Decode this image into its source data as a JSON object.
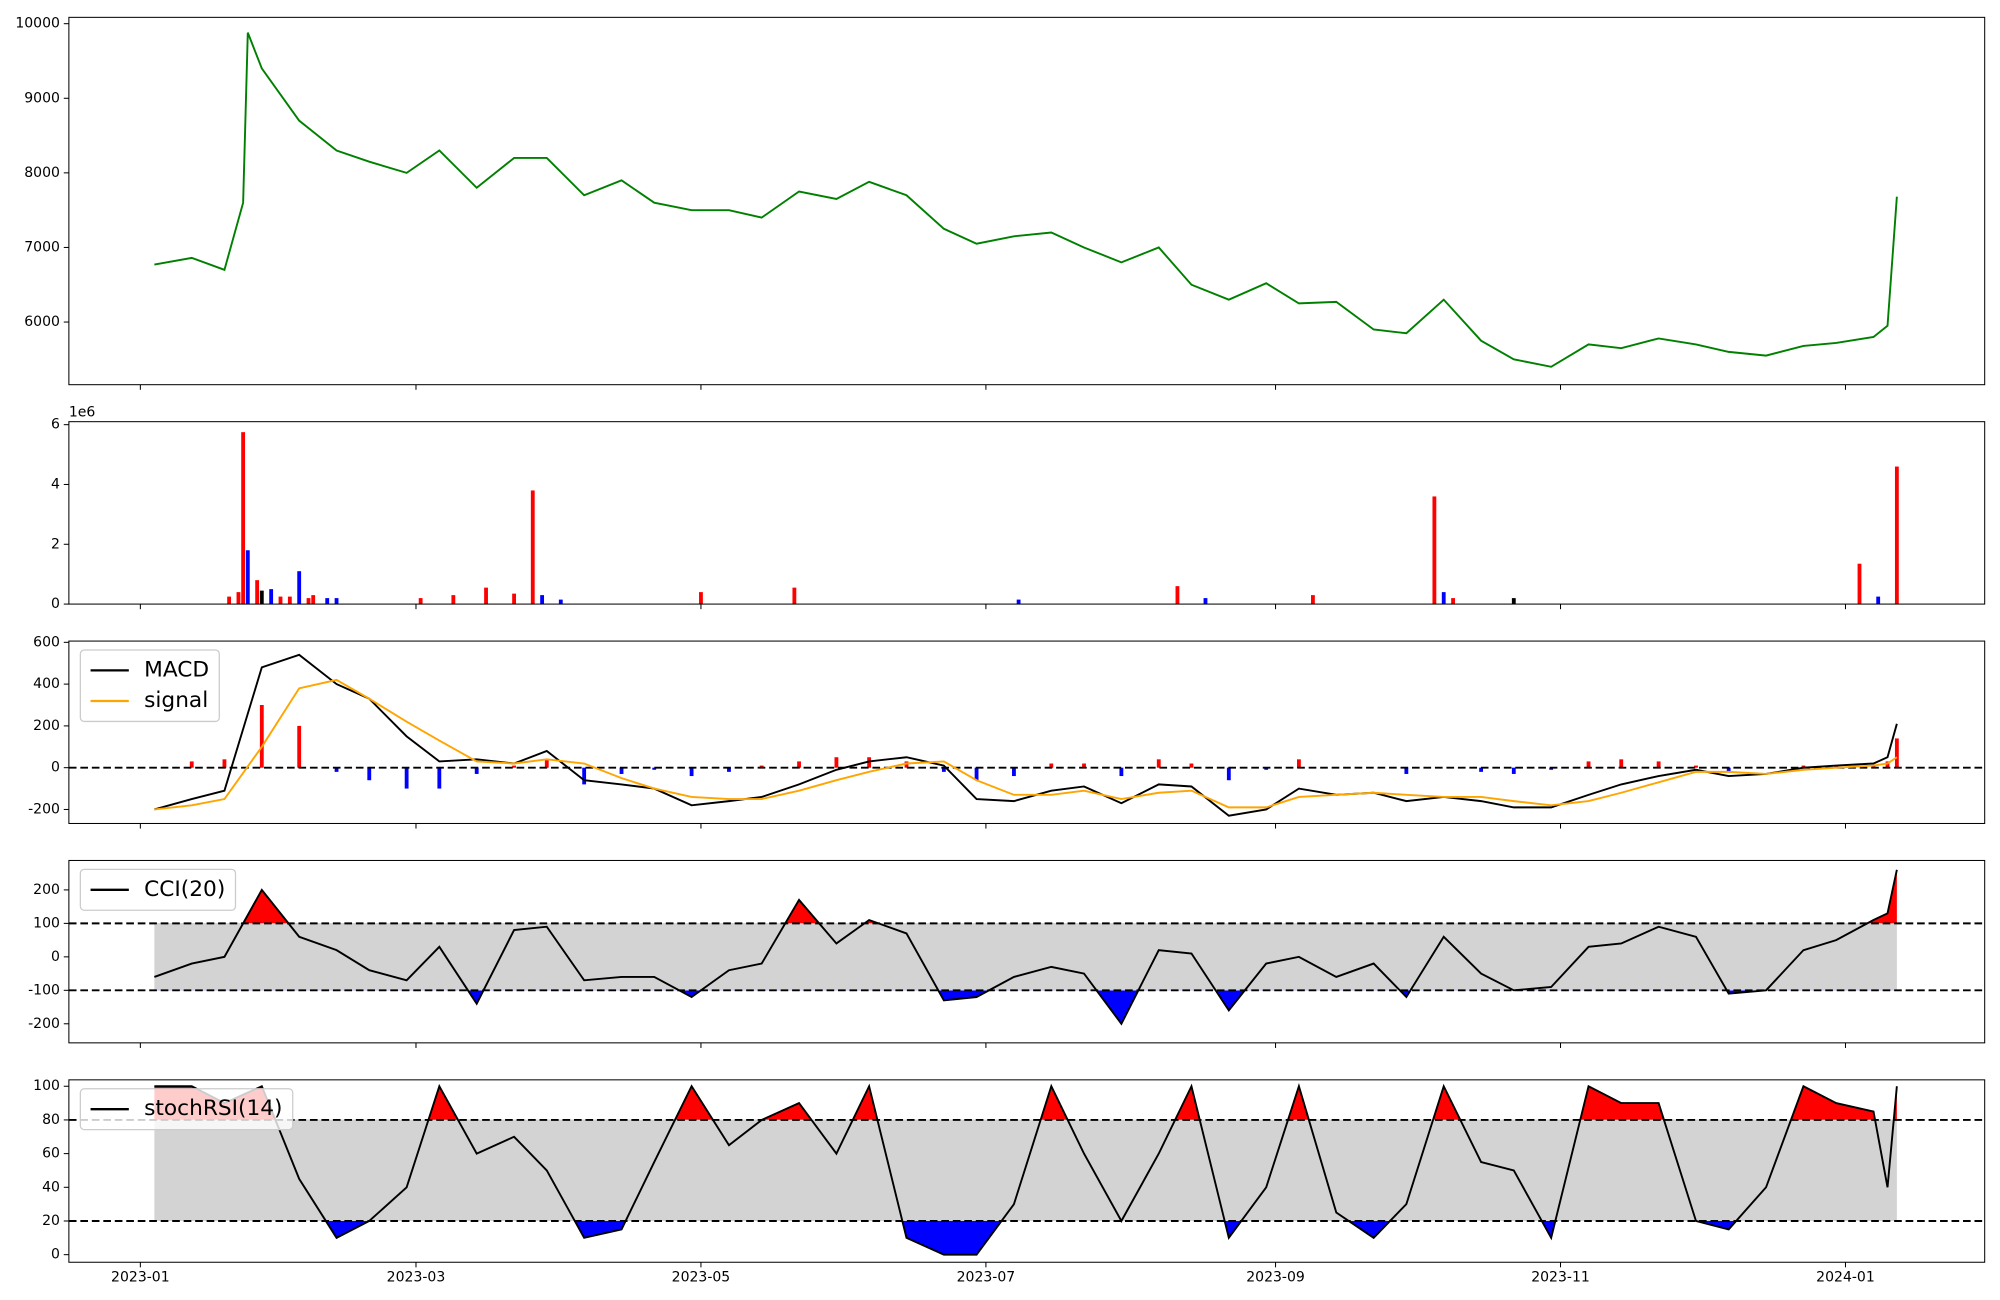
{
  "chart_data": [
    {
      "type": "line",
      "x": [
        3,
        11,
        18,
        22,
        23,
        26,
        34,
        42,
        49,
        57,
        64,
        72,
        80,
        87,
        95,
        103,
        110,
        118,
        126,
        133,
        141,
        149,
        156,
        164,
        172,
        179,
        187,
        195,
        202,
        210,
        218,
        225,
        233,
        241,
        248,
        256,
        264,
        271,
        279,
        287,
        294,
        302,
        310,
        317,
        325,
        333,
        340,
        348,
        356,
        363,
        371,
        374,
        376
      ],
      "series": [
        {
          "color": "green",
          "values": [
            6770,
            6860,
            6700,
            7600,
            9880,
            9400,
            8700,
            8300,
            8150,
            8000,
            8300,
            7800,
            8200,
            8200,
            7700,
            7900,
            7600,
            7500,
            7500,
            7400,
            7750,
            7650,
            7880,
            7700,
            7250,
            7050,
            7150,
            7200,
            7000,
            6800,
            7000,
            6500,
            6300,
            6520,
            6250,
            6270,
            5900,
            5850,
            6300,
            5750,
            5500,
            5400,
            5700,
            5650,
            5780,
            5700,
            5600,
            5550,
            5680,
            5720,
            5800,
            5950,
            7680
          ]
        }
      ],
      "xlim": [
        -15.3,
        394.8
      ],
      "ylim": [
        5160,
        10085
      ],
      "yticks": [
        6000,
        7000,
        8000,
        9000,
        10000
      ]
    },
    {
      "type": "bar",
      "x": [
        19,
        21,
        22,
        23,
        25,
        26,
        28,
        30,
        32,
        34,
        36,
        37,
        40,
        42,
        60,
        67,
        74,
        80,
        84,
        86,
        90,
        120,
        140,
        188,
        222,
        228,
        251,
        277,
        279,
        281,
        294,
        368,
        372,
        376
      ],
      "values": [
        0.25,
        0.4,
        5.75,
        1.8,
        0.8,
        0.45,
        0.5,
        0.25,
        0.25,
        1.1,
        0.2,
        0.3,
        0.2,
        0.2,
        0.2,
        0.3,
        0.55,
        0.35,
        3.8,
        0.3,
        0.15,
        0.4,
        0.55,
        0.15,
        0.6,
        0.2,
        0.3,
        3.6,
        0.4,
        0.2,
        0.2,
        1.35,
        0.25,
        4.6
      ],
      "colors": [
        "red",
        "red",
        "red",
        "blue",
        "red",
        "black",
        "blue",
        "red",
        "red",
        "blue",
        "red",
        "red",
        "blue",
        "blue",
        "red",
        "red",
        "red",
        "red",
        "red",
        "blue",
        "blue",
        "red",
        "red",
        "blue",
        "red",
        "blue",
        "red",
        "red",
        "blue",
        "red",
        "black",
        "red",
        "blue",
        "red"
      ],
      "xlim": [
        -15.3,
        394.8
      ],
      "ylim": [
        0,
        6.1
      ],
      "yticks": [
        0,
        2,
        4,
        6
      ],
      "y_offset_label": "1e6"
    },
    {
      "type": "line",
      "x": [
        3,
        11,
        18,
        26,
        34,
        42,
        49,
        57,
        64,
        72,
        80,
        87,
        95,
        103,
        110,
        118,
        126,
        133,
        141,
        149,
        156,
        164,
        172,
        179,
        187,
        195,
        202,
        210,
        218,
        225,
        233,
        241,
        248,
        256,
        264,
        271,
        279,
        287,
        294,
        302,
        310,
        317,
        325,
        333,
        340,
        348,
        356,
        363,
        371,
        374,
        376
      ],
      "series": [
        {
          "name": "MACD",
          "color": "black",
          "values": [
            -200,
            -150,
            -110,
            480,
            540,
            400,
            330,
            150,
            30,
            40,
            20,
            80,
            -60,
            -80,
            -100,
            -180,
            -160,
            -140,
            -80,
            -10,
            30,
            50,
            10,
            -150,
            -160,
            -110,
            -90,
            -170,
            -80,
            -90,
            -230,
            -200,
            -100,
            -130,
            -120,
            -160,
            -140,
            -160,
            -190,
            -190,
            -130,
            -80,
            -40,
            -10,
            -40,
            -30,
            0,
            10,
            20,
            50,
            210
          ]
        },
        {
          "name": "signal",
          "color": "orange",
          "values": [
            -200,
            -180,
            -150,
            100,
            380,
            420,
            330,
            220,
            130,
            30,
            20,
            40,
            20,
            -50,
            -100,
            -140,
            -150,
            -150,
            -110,
            -60,
            -20,
            20,
            30,
            -60,
            -130,
            -130,
            -110,
            -150,
            -120,
            -110,
            -190,
            -190,
            -140,
            -130,
            -120,
            -130,
            -140,
            -140,
            -160,
            -180,
            -160,
            -120,
            -70,
            -20,
            -20,
            -30,
            -10,
            0,
            10,
            20,
            50
          ]
        }
      ],
      "histogram": {
        "values": [
          0,
          30,
          40,
          300,
          200,
          -20,
          -60,
          -100,
          -100,
          -30,
          10,
          40,
          -80,
          -30,
          -10,
          -40,
          -20,
          10,
          30,
          50,
          50,
          30,
          -20,
          -60,
          -40,
          20,
          20,
          -40,
          40,
          20,
          -60,
          -10,
          40,
          0,
          0,
          -30,
          0,
          -20,
          -30,
          -10,
          30,
          40,
          30,
          10,
          -20,
          0,
          10,
          10,
          10,
          30,
          140
        ],
        "colors": [
          "red",
          "blue"
        ]
      },
      "hlines": [
        0
      ],
      "legend": "upper left",
      "xlim": [
        -15.3,
        394.8
      ],
      "ylim": [
        -267,
        606
      ],
      "yticks": [
        -200,
        0,
        200,
        400,
        600
      ]
    },
    {
      "type": "line",
      "x": [
        3,
        11,
        18,
        26,
        34,
        42,
        49,
        57,
        64,
        72,
        80,
        87,
        95,
        103,
        110,
        118,
        126,
        133,
        141,
        149,
        156,
        164,
        172,
        179,
        187,
        195,
        202,
        210,
        218,
        225,
        233,
        241,
        248,
        256,
        264,
        271,
        279,
        287,
        294,
        302,
        310,
        317,
        325,
        333,
        340,
        348,
        356,
        363,
        371,
        374,
        376
      ],
      "series": [
        {
          "name": "CCI(20)",
          "color": "black",
          "values": [
            -60,
            -20,
            0,
            200,
            60,
            20,
            -40,
            -70,
            30,
            -140,
            80,
            90,
            -70,
            -60,
            -60,
            -120,
            -40,
            -20,
            170,
            40,
            110,
            70,
            -130,
            -120,
            -60,
            -30,
            -50,
            -200,
            20,
            10,
            -160,
            -20,
            0,
            -60,
            -20,
            -120,
            60,
            -50,
            -100,
            -90,
            30,
            40,
            90,
            60,
            -110,
            -100,
            20,
            50,
            110,
            130,
            260
          ]
        }
      ],
      "hlines": [
        -100,
        100
      ],
      "band_color": "lightgray",
      "above_color": "red",
      "below_color": "blue",
      "legend": "upper left",
      "xlim": [
        -15.3,
        394.8
      ],
      "ylim": [
        -257,
        288
      ],
      "yticks": [
        -200,
        -100,
        0,
        100,
        200
      ]
    },
    {
      "type": "line",
      "x": [
        3,
        11,
        18,
        26,
        34,
        42,
        49,
        57,
        64,
        72,
        80,
        87,
        95,
        103,
        110,
        118,
        126,
        133,
        141,
        149,
        156,
        164,
        172,
        179,
        187,
        195,
        202,
        210,
        218,
        225,
        233,
        241,
        248,
        256,
        264,
        271,
        279,
        287,
        294,
        302,
        310,
        317,
        325,
        333,
        340,
        348,
        356,
        363,
        371,
        374,
        376
      ],
      "series": [
        {
          "name": "stochRSI(14)",
          "color": "black",
          "values": [
            100,
            100,
            90,
            100,
            45,
            10,
            20,
            40,
            100,
            60,
            70,
            50,
            10,
            15,
            55,
            100,
            65,
            80,
            90,
            60,
            100,
            10,
            0,
            0,
            30,
            100,
            60,
            20,
            60,
            100,
            10,
            40,
            100,
            25,
            10,
            30,
            100,
            55,
            50,
            10,
            100,
            90,
            90,
            20,
            15,
            40,
            100,
            90,
            85,
            40,
            100
          ]
        }
      ],
      "hlines": [
        20,
        80
      ],
      "band_color": "lightgray",
      "above_color": "red",
      "below_color": "blue",
      "legend": "upper left",
      "xlim": [
        -15.3,
        394.8
      ],
      "ylim": [
        -4.5,
        103.8
      ],
      "yticks": [
        0,
        20,
        40,
        60,
        80,
        100
      ],
      "xticks": [
        {
          "value": 0,
          "label": "2023-01"
        },
        {
          "value": 59,
          "label": "2023-03"
        },
        {
          "value": 120,
          "label": "2023-05"
        },
        {
          "value": 181,
          "label": "2023-07"
        },
        {
          "value": 243,
          "label": "2023-09"
        },
        {
          "value": 304,
          "label": "2023-11"
        },
        {
          "value": 365,
          "label": "2024-01"
        }
      ]
    }
  ]
}
